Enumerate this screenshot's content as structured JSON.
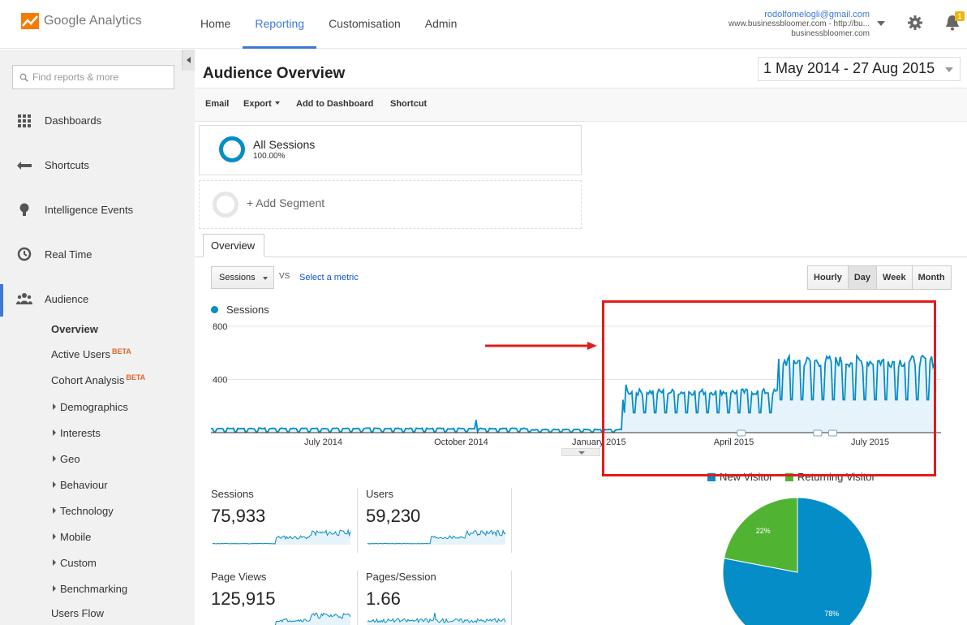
{
  "app": {
    "logo_google": "Google",
    "logo_product": "Analytics"
  },
  "topnav": [
    "Home",
    "Reporting",
    "Customisation",
    "Admin"
  ],
  "account": {
    "email": "rodolfomelogli@gmail.com",
    "property": "www.businessbloomer.com - http://bu...",
    "view": "businessbloomer.com",
    "notifications": "1"
  },
  "sidebar": {
    "search_placeholder": "Find reports & more",
    "items": [
      "Dashboards",
      "Shortcuts",
      "Intelligence Events",
      "Real Time",
      "Audience"
    ],
    "audience_sub": {
      "overview": "Overview",
      "active_users": "Active Users",
      "cohort_analysis": "Cohort Analysis",
      "beta": "BETA",
      "groups": [
        "Demographics",
        "Interests",
        "Geo",
        "Behaviour",
        "Technology",
        "Mobile",
        "Custom",
        "Benchmarking"
      ],
      "users_flow": "Users Flow"
    }
  },
  "page": {
    "title": "Audience Overview",
    "date_range": "1 May 2014 - 27 Aug 2015"
  },
  "toolbar": {
    "email": "Email",
    "export": "Export",
    "add_to_dashboard": "Add to Dashboard",
    "shortcut": "Shortcut"
  },
  "segments": {
    "active_name": "All Sessions",
    "active_pct": "100.00%",
    "add_label": "+ Add Segment"
  },
  "tabs": {
    "overview": "Overview"
  },
  "chart_controls": {
    "metric": "Sessions",
    "vs": "VS",
    "select_metric": "Select a metric",
    "granularity": [
      "Hourly",
      "Day",
      "Week",
      "Month"
    ],
    "selected_granularity": "Day"
  },
  "chart_data": {
    "type": "area",
    "series": [
      {
        "name": "Sessions",
        "color": "#058dc7"
      }
    ],
    "y_ticks": [
      "800",
      "400"
    ],
    "ylim": [
      0,
      800
    ],
    "x_tick_labels": [
      "July 2014",
      "October 2014",
      "January 2015",
      "April 2015",
      "July 2015"
    ],
    "x_range": [
      "2014-05-01",
      "2015-08-27"
    ],
    "phases": [
      {
        "from": "2014-05-01",
        "to": "2014-12-01",
        "min": 5,
        "max": 35
      },
      {
        "from": "2014-12-01",
        "to": "2015-01-31",
        "min": 3,
        "max": 25
      },
      {
        "from": "2015-02-01",
        "to": "2015-05-15",
        "min": 140,
        "max": 330
      },
      {
        "from": "2015-05-15",
        "to": "2015-08-27",
        "min": 230,
        "max": 580
      }
    ],
    "spikes": [
      {
        "date": "2014-10-25",
        "value": 95
      },
      {
        "date": "2015-02-02",
        "value": 360
      }
    ],
    "annotation_dates": [
      "2015-04-20",
      "2015-06-10",
      "2015-06-20"
    ]
  },
  "stats": [
    {
      "label": "Sessions",
      "value": "75,933"
    },
    {
      "label": "Users",
      "value": "59,230"
    },
    {
      "label": "Page Views",
      "value": "125,915"
    },
    {
      "label": "Pages/Session",
      "value": "1.66"
    }
  ],
  "pie": {
    "legend": [
      {
        "label": "New Visitor",
        "color": "#058dc7"
      },
      {
        "label": "Returning Visitor",
        "color": "#50b432"
      }
    ],
    "slices": [
      {
        "label": "78%",
        "value": 78,
        "color": "#058dc7"
      },
      {
        "label": "22%",
        "value": 22,
        "color": "#50b432"
      }
    ]
  },
  "colors": {
    "accent": "#3c78d8",
    "series": "#058dc7",
    "highlight": "#e31b1b"
  }
}
